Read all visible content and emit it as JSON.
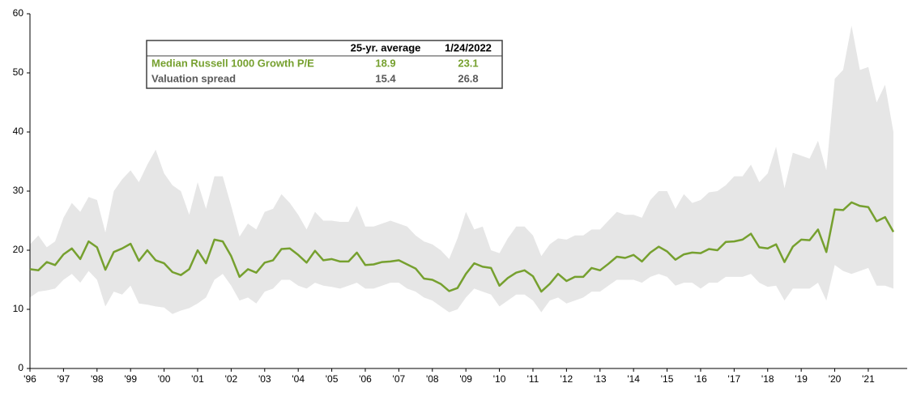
{
  "chart_data": {
    "type": "line",
    "x": [
      1996,
      1996.25,
      1996.5,
      1996.75,
      1997,
      1997.25,
      1997.5,
      1997.75,
      1998,
      1998.25,
      1998.5,
      1998.75,
      1999,
      1999.25,
      1999.5,
      1999.75,
      2000,
      2000.25,
      2000.5,
      2000.75,
      2001,
      2001.25,
      2001.5,
      2001.75,
      2002,
      2002.25,
      2002.5,
      2002.75,
      2003,
      2003.25,
      2003.5,
      2003.75,
      2004,
      2004.25,
      2004.5,
      2004.75,
      2005,
      2005.25,
      2005.5,
      2005.75,
      2006,
      2006.25,
      2006.5,
      2006.75,
      2007,
      2007.25,
      2007.5,
      2007.75,
      2008,
      2008.25,
      2008.5,
      2008.75,
      2009,
      2009.25,
      2009.5,
      2009.75,
      2010,
      2010.25,
      2010.5,
      2010.75,
      2011,
      2011.25,
      2011.5,
      2011.75,
      2012,
      2012.25,
      2012.5,
      2012.75,
      2013,
      2013.25,
      2013.5,
      2013.75,
      2014,
      2014.25,
      2014.5,
      2014.75,
      2015,
      2015.25,
      2015.5,
      2015.75,
      2016,
      2016.25,
      2016.5,
      2016.75,
      2017,
      2017.25,
      2017.5,
      2017.75,
      2018,
      2018.25,
      2018.5,
      2018.75,
      2019,
      2019.25,
      2019.5,
      2019.75,
      2020,
      2020.25,
      2020.5,
      2020.75,
      2021,
      2021.25,
      2021.5,
      2021.75
    ],
    "values": [
      16.8,
      16.6,
      18,
      17.5,
      19.3,
      20.3,
      18.5,
      21.5,
      20.5,
      16.7,
      19.7,
      20.3,
      21.1,
      18.2,
      20,
      18.3,
      17.8,
      16.3,
      15.8,
      16.8,
      20,
      17.8,
      21.8,
      21.5,
      19,
      15.5,
      16.8,
      16.2,
      17.9,
      18.3,
      20.2,
      20.3,
      19.2,
      17.9,
      19.9,
      18.3,
      18.5,
      18.1,
      18.1,
      19.6,
      17.5,
      17.6,
      18,
      18.1,
      18.3,
      17.6,
      16.9,
      15.2,
      15,
      14.3,
      13.1,
      13.6,
      16,
      17.8,
      17.2,
      17,
      14,
      15.3,
      16.2,
      16.6,
      15.6,
      13,
      14.3,
      16,
      14.8,
      15.5,
      15.5,
      17,
      16.6,
      17.7,
      18.9,
      18.7,
      19.2,
      18.1,
      19.6,
      20.6,
      19.8,
      18.4,
      19.3,
      19.6,
      19.5,
      20.2,
      20,
      21.4,
      21.5,
      21.8,
      22.8,
      20.5,
      20.3,
      21,
      18,
      20.6,
      21.8,
      21.7,
      23.5,
      19.7,
      26.9,
      26.8,
      28.1,
      27.5,
      27.3,
      24.9,
      25.6,
      23.1
    ],
    "color": "#76a02f",
    "band": {
      "color": "#e6e6e6",
      "high": [
        21,
        22.5,
        20.5,
        21.5,
        25.5,
        28,
        26.5,
        29,
        28.5,
        23,
        30,
        32,
        33.5,
        31.5,
        34.5,
        37,
        33,
        31,
        30,
        26,
        31.5,
        27,
        32.5,
        32.5,
        27.5,
        22.3,
        24.5,
        23.5,
        26.5,
        27,
        29.5,
        28,
        26,
        23.5,
        26.5,
        25,
        25,
        24.8,
        24.8,
        27.5,
        24,
        24,
        24.5,
        25,
        24.5,
        24,
        22.5,
        21.5,
        21,
        20,
        18.5,
        22,
        26.5,
        23.5,
        24,
        20,
        19.5,
        22,
        24,
        24,
        22.5,
        19,
        21,
        22,
        21.8,
        22.5,
        22.5,
        23.5,
        23.5,
        25,
        26.5,
        26,
        26,
        25.5,
        28.5,
        30,
        30,
        27,
        29.5,
        28,
        28.5,
        29.8,
        30,
        31,
        32.5,
        32.5,
        34.5,
        31.5,
        33,
        37.5,
        30.5,
        36.5,
        36,
        35.5,
        38.5,
        33.5,
        49,
        50.5,
        58,
        50.5,
        51,
        45,
        48,
        40
      ],
      "low": [
        12,
        13,
        13.2,
        13.5,
        15,
        16,
        14.5,
        16.5,
        15,
        10.5,
        13,
        12.5,
        14,
        11,
        10.8,
        10.5,
        10.3,
        9.2,
        9.8,
        10.2,
        11,
        12,
        15,
        16,
        14,
        11.5,
        12,
        11,
        13,
        13.5,
        15,
        15,
        14,
        13.5,
        14.5,
        14,
        13.8,
        13.5,
        14,
        14.5,
        13.5,
        13.5,
        14,
        14.5,
        14.5,
        13.5,
        13,
        12,
        11.5,
        10.5,
        9.5,
        10,
        12,
        13.5,
        13,
        12.5,
        10.5,
        11.5,
        12.5,
        12.5,
        11.5,
        9.5,
        11.5,
        12,
        11,
        11.5,
        12,
        13,
        13,
        14,
        15,
        15,
        15,
        14.5,
        15.5,
        16,
        15.5,
        14,
        14.5,
        14.5,
        13.5,
        14.5,
        14.5,
        15.5,
        15.5,
        15.5,
        16,
        14.5,
        13.8,
        14,
        11.5,
        13.5,
        13.5,
        13.5,
        14.5,
        11.5,
        17.5,
        16.5,
        16,
        16.5,
        17,
        14,
        14,
        13.5
      ]
    },
    "xlim": [
      1996,
      2021.75
    ],
    "xticks": [
      {
        "value": 1996,
        "label": "'96"
      },
      {
        "value": 1997,
        "label": "'97"
      },
      {
        "value": 1998,
        "label": "'98"
      },
      {
        "value": 1999,
        "label": "'99"
      },
      {
        "value": 2000,
        "label": "'00"
      },
      {
        "value": 2001,
        "label": "'01"
      },
      {
        "value": 2002,
        "label": "'02"
      },
      {
        "value": 2003,
        "label": "'03"
      },
      {
        "value": 2004,
        "label": "'04"
      },
      {
        "value": 2005,
        "label": "'05"
      },
      {
        "value": 2006,
        "label": "'06"
      },
      {
        "value": 2007,
        "label": "'07"
      },
      {
        "value": 2008,
        "label": "'08"
      },
      {
        "value": 2009,
        "label": "'09"
      },
      {
        "value": 2010,
        "label": "'10"
      },
      {
        "value": 2011,
        "label": "'11"
      },
      {
        "value": 2012,
        "label": "'12"
      },
      {
        "value": 2013,
        "label": "'13"
      },
      {
        "value": 2014,
        "label": "'14"
      },
      {
        "value": 2015,
        "label": "'15"
      },
      {
        "value": 2016,
        "label": "'16"
      },
      {
        "value": 2017,
        "label": "'17"
      },
      {
        "value": 2018,
        "label": "'18"
      },
      {
        "value": 2019,
        "label": "'19"
      },
      {
        "value": 2020,
        "label": "'20"
      },
      {
        "value": 2021,
        "label": "'21"
      }
    ],
    "ylim": [
      0,
      60
    ],
    "yticks": [
      0,
      10,
      20,
      30,
      40,
      50,
      60
    ],
    "table": {
      "header": [
        "25-yr. average",
        "1/24/2022"
      ],
      "rows": [
        {
          "label": "Median Russell 1000 Growth P/E",
          "average": 18.9,
          "current": 23.1,
          "color": "#76a02f"
        },
        {
          "label": "Valuation spread",
          "average": 15.4,
          "current": 26.8,
          "color": "#595959"
        }
      ]
    }
  }
}
